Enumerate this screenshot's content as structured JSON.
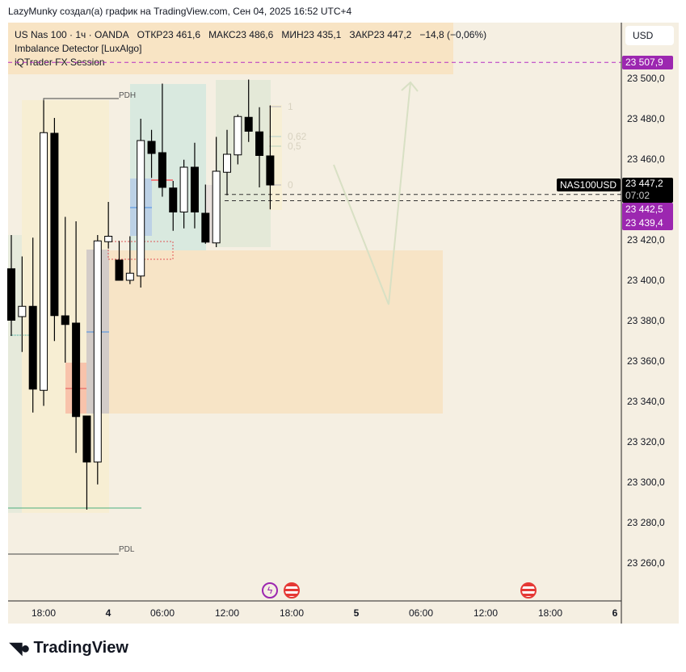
{
  "credit": "LazyMunky создал(а) график на TradingView.com, Сен 04, 2025 16:52 UTC+4",
  "legend": {
    "symbol_line": "US Nas 100 · 1ч · OANDA",
    "open_label": "ОТКР",
    "open": "23 461,6",
    "high_label": "МАКС",
    "high": "23 486,6",
    "low_label": "МИН",
    "low": "23 435,1",
    "close_label": "ЗАКР",
    "close": "23 447,2",
    "change": "−14,8 (−0,06%)",
    "indicators": [
      "Imbalance Detector [LuxAlgo]",
      "iQTrader FX Session"
    ]
  },
  "currency": "USD",
  "price_scale": [
    "23 500,0",
    "23 480,0",
    "23 460,0",
    "23 420,0",
    "23 400,0",
    "23 380,0",
    "23 360,0",
    "23 340,0",
    "23 320,0",
    "23 300,0",
    "23 280,0",
    "23 260,0"
  ],
  "price_tags": {
    "top_line": "23 507,9",
    "symbol": "NAS100USD",
    "last": "23 447,2",
    "countdown": "07:02",
    "line1": "23 442,5",
    "line2": "23 439,4"
  },
  "annotations": {
    "pdh": "PDH",
    "pdl": "PDL",
    "fib": [
      "1",
      "0,62",
      "0,5",
      "0"
    ]
  },
  "time_axis": [
    "18:00",
    "4",
    "06:00",
    "12:00",
    "18:00",
    "5",
    "06:00",
    "12:00",
    "18:00",
    "6"
  ],
  "colors": {
    "bg": "#f5efe2",
    "accent": "#9c27b0",
    "bull": "#ffffff",
    "bear": "#000000"
  },
  "icons": [
    "lightning-event-icon",
    "us-flag-icon",
    "us-flag-icon"
  ],
  "logo": "TradingView",
  "chart_data": {
    "type": "candlestick",
    "title": "US Nas 100 · 1ч · OANDA",
    "ylim": [
      23250,
      23510
    ],
    "candles": [
      {
        "t": "03 15:00",
        "o": 23405.7,
        "h": 23422.4,
        "l": 23372.4,
        "c": 23380.2
      },
      {
        "t": "03 16:00",
        "o": 23382.0,
        "h": 23411.8,
        "l": 23364.5,
        "c": 23387.1
      },
      {
        "t": "03 17:00",
        "o": 23387.1,
        "h": 23421.1,
        "l": 23334.5,
        "c": 23346.1
      },
      {
        "t": "03 18:00",
        "o": 23345.5,
        "h": 23489.1,
        "l": 23337.8,
        "c": 23473.1
      },
      {
        "t": "03 19:00",
        "o": 23472.8,
        "h": 23480.4,
        "l": 23369.9,
        "c": 23382.5
      },
      {
        "t": "03 20:00",
        "o": 23382.4,
        "h": 23431.4,
        "l": 23359.2,
        "c": 23378.1
      },
      {
        "t": "03 21:00",
        "o": 23378.8,
        "h": 23429.2,
        "l": 23314.5,
        "c": 23332.5
      },
      {
        "t": "03 22:00",
        "o": 23332.8,
        "h": 23332.8,
        "l": 23286.4,
        "c": 23310.0
      },
      {
        "t": "03 23:00",
        "o": 23310.0,
        "h": 23422.4,
        "l": 23298.9,
        "c": 23419.5
      },
      {
        "t": "04 00:00",
        "o": 23419.1,
        "h": 23438.8,
        "l": 23415.7,
        "c": 23421.8
      },
      {
        "t": "04 02:00",
        "o": 23410.0,
        "h": 23419.5,
        "l": 23400.0,
        "c": 23400.0
      },
      {
        "t": "04 03:00",
        "o": 23400.0,
        "h": 23421.8,
        "l": 23398.1,
        "c": 23403.5
      },
      {
        "t": "04 04:00",
        "o": 23402.1,
        "h": 23480.0,
        "l": 23396.4,
        "c": 23469.2
      },
      {
        "t": "04 05:00",
        "o": 23468.8,
        "h": 23474.5,
        "l": 23450.7,
        "c": 23462.8
      },
      {
        "t": "04 06:00",
        "o": 23463.2,
        "h": 23497.4,
        "l": 23441.4,
        "c": 23446.0
      },
      {
        "t": "04 07:00",
        "o": 23445.7,
        "h": 23449.2,
        "l": 23424.5,
        "c": 23433.8
      },
      {
        "t": "04 08:00",
        "o": 23433.8,
        "h": 23459.7,
        "l": 23425.7,
        "c": 23456.0
      },
      {
        "t": "04 09:00",
        "o": 23456.0,
        "h": 23468.1,
        "l": 23425.7,
        "c": 23433.8
      },
      {
        "t": "04 10:00",
        "o": 23433.2,
        "h": 23447.4,
        "l": 23418.1,
        "c": 23418.9
      },
      {
        "t": "04 11:00",
        "o": 23418.5,
        "h": 23471.0,
        "l": 23416.4,
        "c": 23454.0
      },
      {
        "t": "04 12:00",
        "o": 23453.5,
        "h": 23474.5,
        "l": 23442.1,
        "c": 23462.4
      },
      {
        "t": "04 13:00",
        "o": 23462.1,
        "h": 23482.1,
        "l": 23457.4,
        "c": 23481.1
      },
      {
        "t": "04 14:00",
        "o": 23480.7,
        "h": 23499.4,
        "l": 23468.5,
        "c": 23473.8
      },
      {
        "t": "04 15:00",
        "o": 23473.5,
        "h": 23485.7,
        "l": 23446.0,
        "c": 23461.8
      },
      {
        "t": "04 16:00",
        "o": 23461.6,
        "h": 23486.6,
        "l": 23435.1,
        "c": 23447.2
      }
    ],
    "levels": [
      23507.9,
      23442.5,
      23439.4
    ],
    "grid": false
  }
}
